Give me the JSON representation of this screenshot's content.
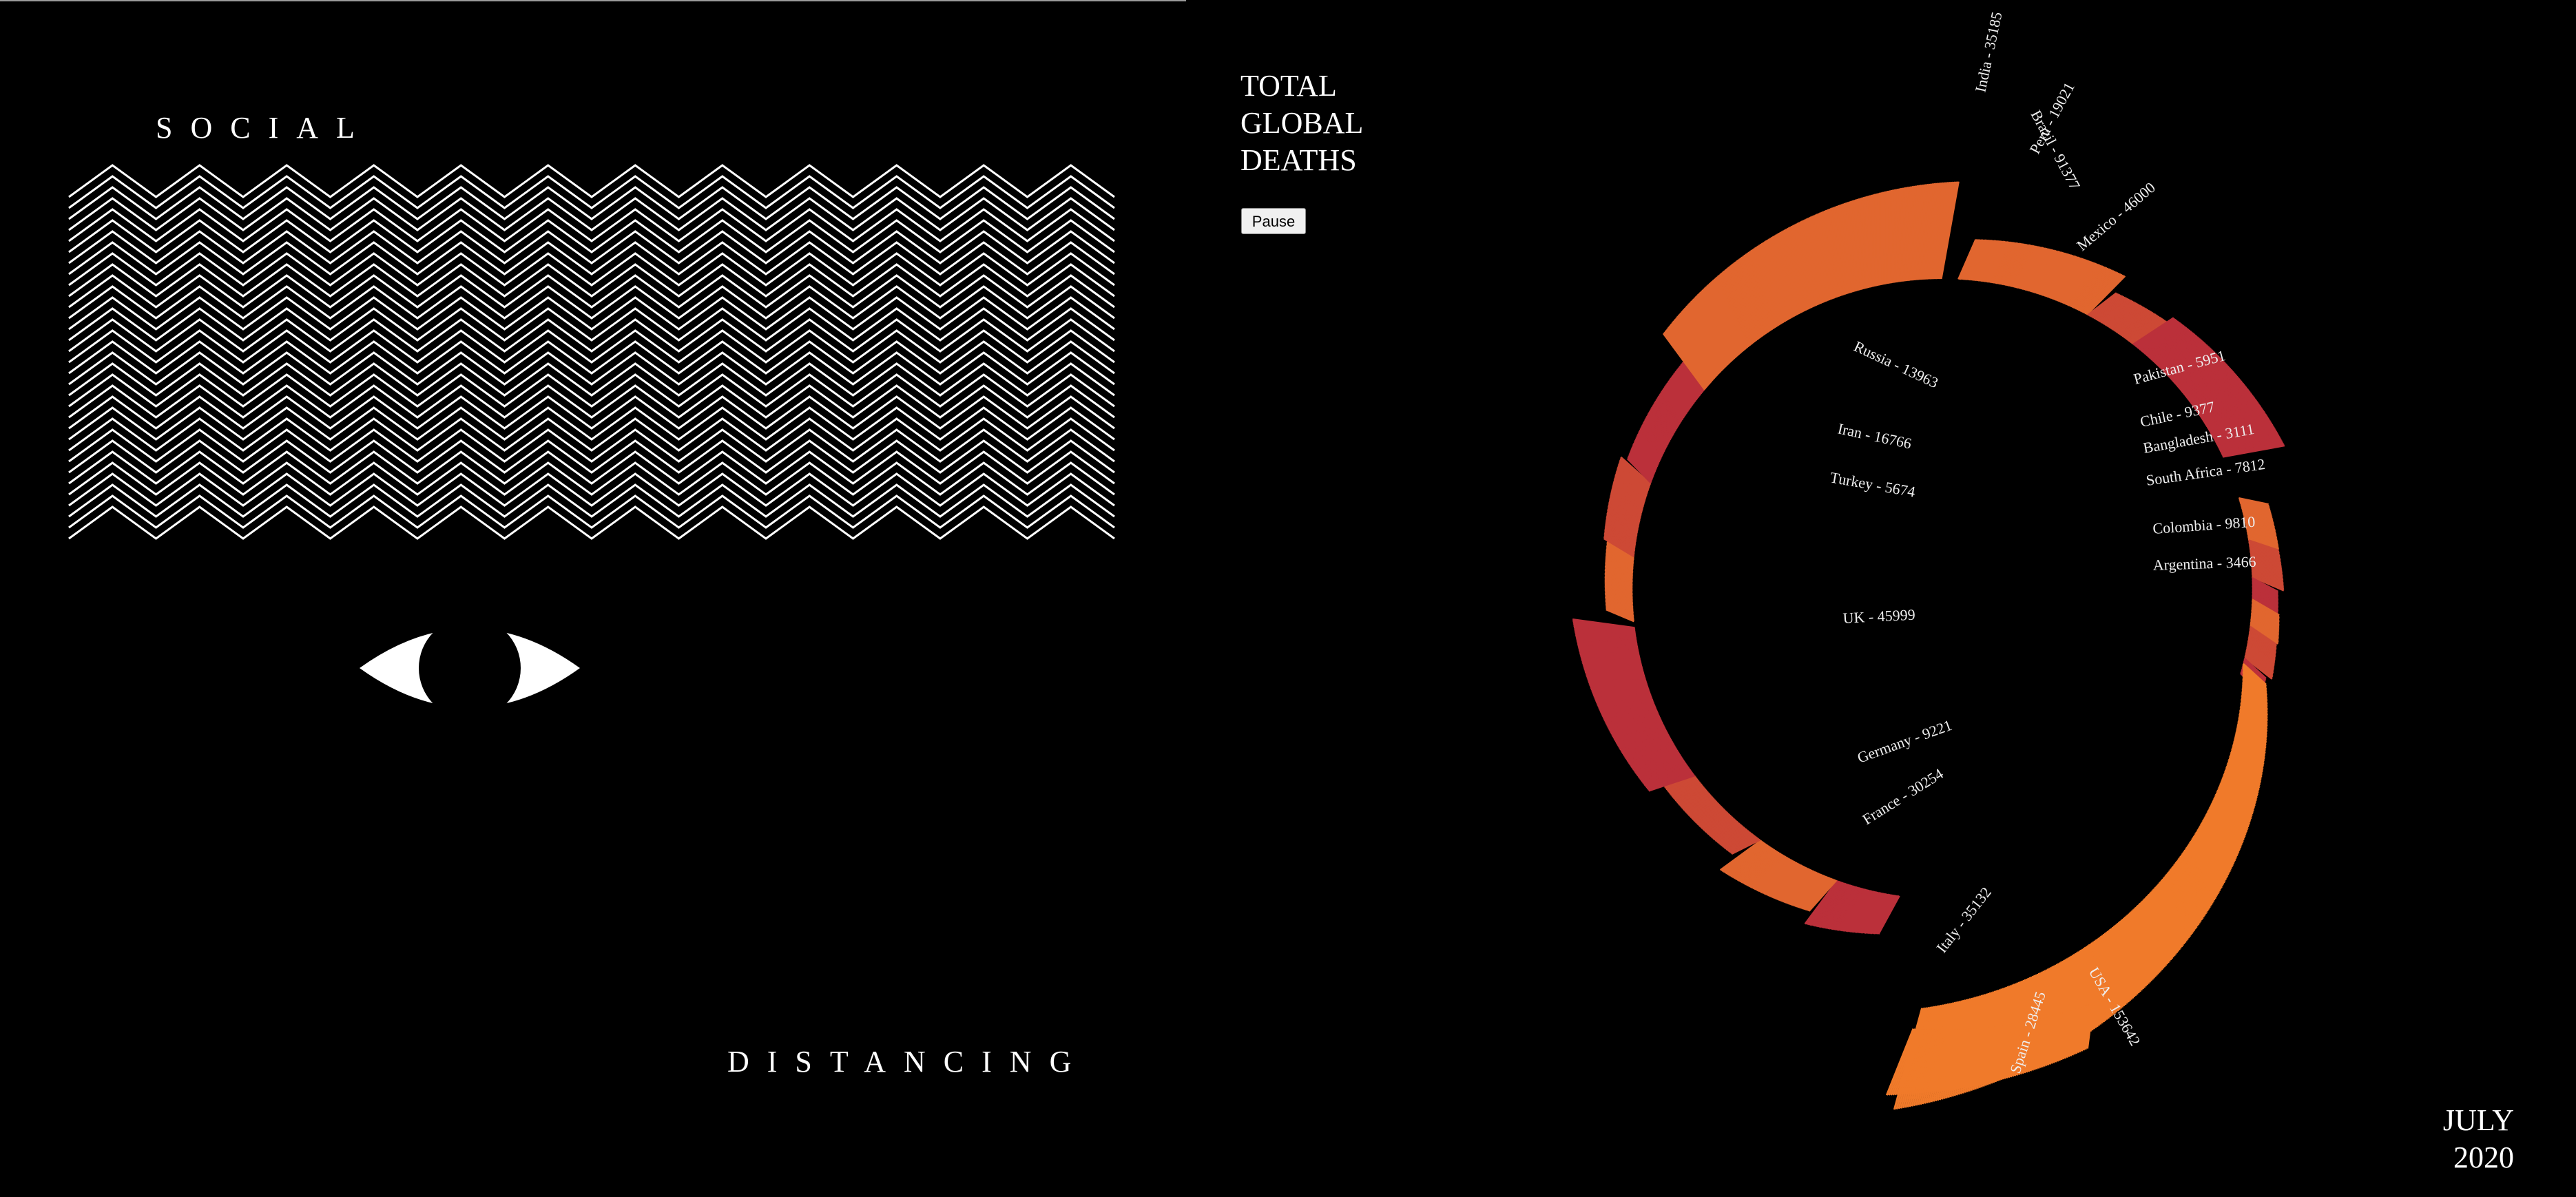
{
  "left": {
    "word_top": "SOCIAL",
    "word_bottom": "DISTANCING"
  },
  "right": {
    "title_lines": [
      "TOTAL",
      "GLOBAL",
      "DEATHS"
    ],
    "pause_label": "Pause",
    "month": "JULY",
    "year": "2020"
  },
  "chart_data": {
    "type": "radial-bar",
    "title": "TOTAL GLOBAL DEATHS",
    "period": "JULY 2020",
    "colors": {
      "low": "#f07a2a",
      "high": "#b5283c",
      "mid": "#e04a3a"
    },
    "categories": [
      "India",
      "Peru",
      "Mexico",
      "Pakistan",
      "Chile",
      "Bangladesh",
      "South Africa",
      "Colombia",
      "Argentina",
      "USA",
      "Spain",
      "Italy",
      "France",
      "Germany",
      "UK",
      "Turkey",
      "Iran",
      "Russia",
      "Brazil"
    ],
    "values": [
      35185,
      19021,
      46000,
      5951,
      9377,
      3111,
      7812,
      9810,
      3466,
      153642,
      28445,
      35132,
      30254,
      9221,
      45999,
      5674,
      16766,
      13963,
      91377
    ],
    "labels": [
      "India - 35185",
      "Peru - 19021",
      "Mexico - 46000",
      "Pakistan - 5951",
      "Chile - 9377",
      "Bangladesh - 3111",
      "South Africa - 7812",
      "Colombia - 9810",
      "Argentina - 3466",
      "USA - 153642",
      "Spain - 28445",
      "Italy - 35132",
      "France - 30254",
      "Germany - 9221",
      "UK - 45999",
      "Turkey - 5674",
      "Iran - 16766",
      "Russia - 13963",
      "Brazil - 91377"
    ]
  }
}
